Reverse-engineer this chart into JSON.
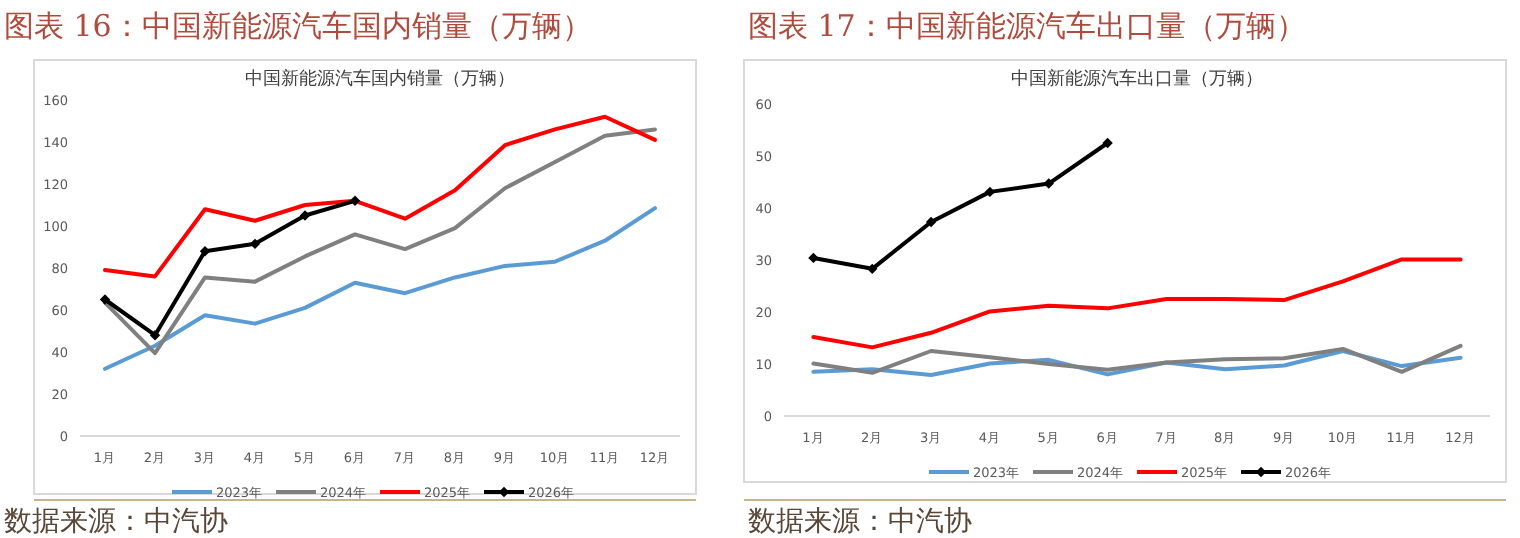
{
  "chart_data": [
    {
      "type": "line",
      "title": "图表 16：中国新能源汽车国内销量（万辆）",
      "subtitle": "中国新能源汽车国内销量（万辆）",
      "categories": [
        "1月",
        "2月",
        "3月",
        "4月",
        "5月",
        "6月",
        "7月",
        "8月",
        "9月",
        "10月",
        "11月",
        "12月"
      ],
      "series": [
        {
          "name": "2023年",
          "color": "#5b9bd5",
          "values": [
            32,
            43,
            57.5,
            53.5,
            61,
            73,
            68,
            75.5,
            81,
            83,
            93,
            108.5
          ]
        },
        {
          "name": "2024年",
          "color": "#808080",
          "values": [
            63.5,
            39.5,
            75.5,
            73.5,
            85.5,
            96,
            89,
            99,
            118,
            130.5,
            143,
            146
          ]
        },
        {
          "name": "2025年",
          "color": "#ff0000",
          "values": [
            79,
            76,
            108,
            102.5,
            110,
            112,
            103.5,
            117,
            138.5,
            146,
            152,
            141
          ]
        },
        {
          "name": "2026年",
          "color": "#000000",
          "marker": "diamond",
          "values": [
            65,
            48,
            88,
            91.5,
            105,
            112,
            null,
            null,
            null,
            null,
            null,
            null
          ]
        }
      ],
      "ylim": [
        0,
        160
      ],
      "yticks": [
        0,
        20,
        40,
        60,
        80,
        100,
        120,
        140,
        160
      ],
      "legend": "bottom",
      "annotations": [
        "数据来源：中汽协"
      ]
    },
    {
      "type": "line",
      "title": "图表 17：中国新能源汽车出口量（万辆）",
      "subtitle": "中国新能源汽车出口量（万辆）",
      "categories": [
        "1月",
        "2月",
        "3月",
        "4月",
        "5月",
        "6月",
        "7月",
        "8月",
        "9月",
        "10月",
        "11月",
        "12月"
      ],
      "series": [
        {
          "name": "2023年",
          "color": "#5b9bd5",
          "values": [
            8.5,
            9,
            7.9,
            10.1,
            10.8,
            8,
            10.3,
            9,
            9.7,
            12.5,
            9.6,
            11.2
          ]
        },
        {
          "name": "2024年",
          "color": "#808080",
          "values": [
            10.1,
            8.3,
            12.5,
            11.3,
            10,
            8.9,
            10.3,
            10.9,
            11.1,
            12.9,
            8.5,
            13.5
          ]
        },
        {
          "name": "2025年",
          "color": "#ff0000",
          "values": [
            15.2,
            13.2,
            16,
            20.1,
            21.2,
            20.7,
            22.5,
            22.5,
            22.3,
            25.9,
            30.1,
            30.1
          ]
        },
        {
          "name": "2026年",
          "color": "#000000",
          "marker": "diamond",
          "values": [
            30.4,
            28.3,
            37.3,
            43.1,
            44.7,
            52.5,
            null,
            null,
            null,
            null,
            null,
            null
          ]
        }
      ],
      "ylim": [
        0,
        60
      ],
      "yticks": [
        0,
        10,
        20,
        30,
        40,
        50,
        60
      ],
      "legend": "bottom",
      "annotations": [
        "数据来源：中汽协"
      ]
    }
  ]
}
